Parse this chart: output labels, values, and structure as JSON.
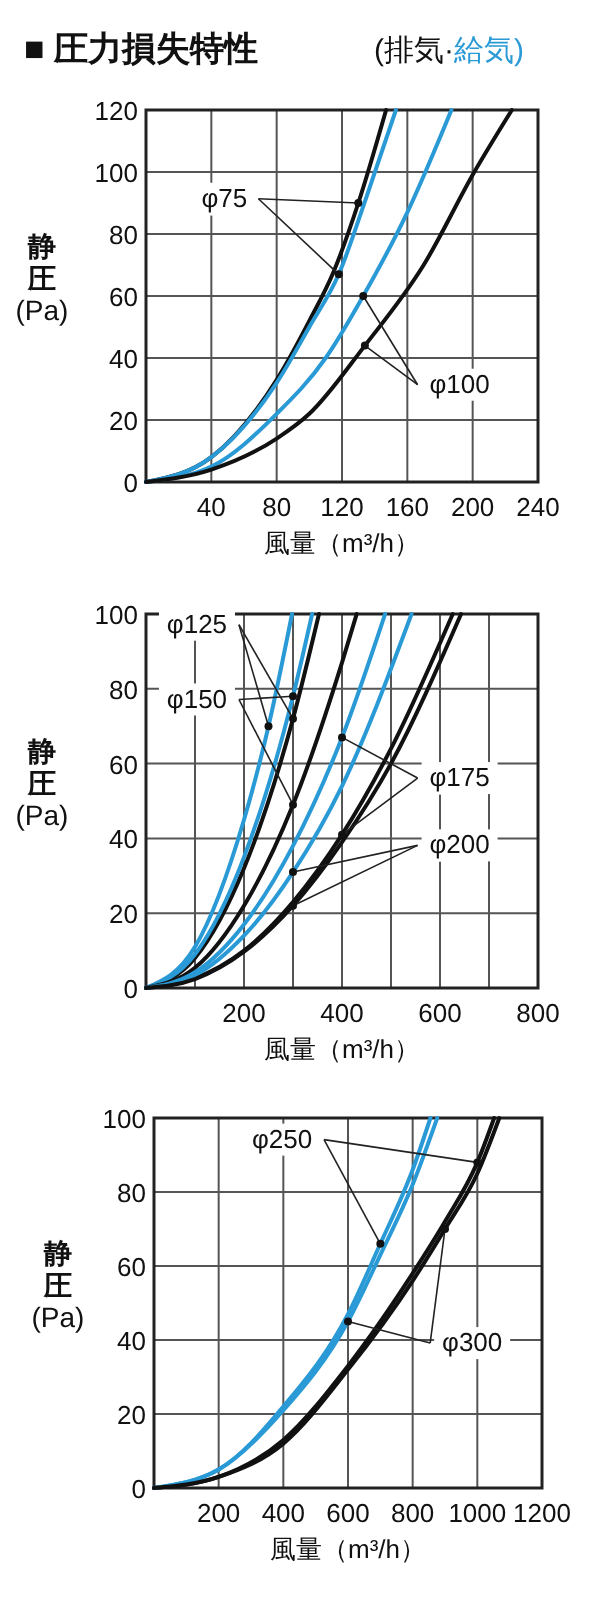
{
  "chart_data": [
    {
      "type": "line",
      "title": "■ 圧力損失特性",
      "subtitle": "(排気·給気)",
      "xlabel": "風量（m³/h）",
      "ylabel": "静圧 (Pa)",
      "xlim": [
        0,
        240
      ],
      "ylim": [
        0,
        120
      ],
      "xticks": [
        40,
        80,
        120,
        160,
        200,
        240
      ],
      "yticks": [
        0,
        20,
        40,
        60,
        80,
        100,
        120
      ],
      "grid": true,
      "legend": false,
      "marker": "none",
      "line_style": "solid",
      "series": [
        {
          "name": "φ75",
          "color": "#111111",
          "x": [
            0,
            40,
            80,
            100,
            115,
            130,
            147
          ],
          "values": [
            0,
            8,
            33,
            52,
            68,
            90,
            120
          ]
        },
        {
          "color": "#2a9ad6",
          "x": [
            0,
            40,
            80,
            100,
            118,
            135,
            153
          ],
          "values": [
            0,
            8,
            32,
            50,
            67,
            92,
            120
          ]
        },
        {
          "name": "φ100",
          "color": "#2a9ad6",
          "x": [
            0,
            40,
            80,
            110,
            133,
            160,
            187
          ],
          "values": [
            0,
            5,
            22,
            40,
            60,
            87,
            120
          ]
        },
        {
          "color": "#111111",
          "x": [
            0,
            40,
            80,
            100,
            134,
            170,
            201,
            224
          ],
          "values": [
            0,
            4,
            14,
            22,
            44,
            70,
            100,
            120
          ]
        }
      ]
    },
    {
      "type": "line",
      "xlabel": "風量（m³/h）",
      "ylabel": "静圧 (Pa)",
      "xlim": [
        0,
        800
      ],
      "ylim": [
        0,
        100
      ],
      "xticks": [
        {
          "value": 100,
          "label": null
        },
        200,
        {
          "value": 300,
          "label": null
        },
        400,
        {
          "value": 500,
          "label": null
        },
        600,
        {
          "value": 700,
          "label": null
        },
        800
      ],
      "yticks": [
        0,
        20,
        40,
        60,
        80,
        100
      ],
      "grid": true,
      "legend": false,
      "marker": "none",
      "line_style": "solid",
      "series": [
        {
          "name": "φ125",
          "color": "#2a9ad6",
          "x": [
            0,
            100,
            200,
            250,
            298
          ],
          "values": [
            0,
            11,
            45,
            70,
            100
          ]
        },
        {
          "color": "#111111",
          "x": [
            0,
            100,
            200,
            300,
            353
          ],
          "values": [
            0,
            8,
            32,
            72,
            100
          ]
        },
        {
          "name": "φ150",
          "color": "#2a9ad6",
          "x": [
            0,
            100,
            200,
            300,
            339
          ],
          "values": [
            0,
            9,
            35,
            78,
            100
          ]
        },
        {
          "color": "#111111",
          "x": [
            0,
            100,
            200,
            300,
            400,
            430
          ],
          "values": [
            0,
            5.4,
            22,
            49,
            87,
            100
          ]
        },
        {
          "name": "φ175",
          "color": "#2a9ad6",
          "x": [
            0,
            100,
            200,
            300,
            400,
            488
          ],
          "values": [
            0,
            4.2,
            17,
            38,
            67,
            100
          ]
        },
        {
          "color": "#111111",
          "x": [
            0,
            100,
            200,
            300,
            400,
            500,
            626
          ],
          "values": [
            0,
            2.6,
            10,
            23,
            41,
            64,
            100
          ]
        },
        {
          "name": "φ200",
          "color": "#2a9ad6",
          "x": [
            0,
            100,
            200,
            300,
            400,
            542
          ],
          "values": [
            0,
            3.4,
            14,
            31,
            54,
            100
          ]
        },
        {
          "color": "#111111",
          "x": [
            0,
            100,
            200,
            300,
            400,
            500,
            643
          ],
          "values": [
            0,
            2.4,
            9.7,
            22,
            39,
            60,
            100
          ]
        }
      ]
    },
    {
      "type": "line",
      "xlabel": "風量（m³/h）",
      "ylabel": "静圧 (Pa)",
      "xlim": [
        0,
        1200
      ],
      "ylim": [
        0,
        100
      ],
      "xticks": [
        200,
        400,
        600,
        800,
        1000,
        1200
      ],
      "yticks": [
        0,
        20,
        40,
        60,
        80,
        100
      ],
      "grid": true,
      "legend": false,
      "marker": "none",
      "line_style": "solid",
      "series": [
        {
          "name": "φ250",
          "color": "#2a9ad6",
          "x": [
            0,
            200,
            400,
            600,
            700,
            800,
            855
          ],
          "values": [
            0,
            5,
            22,
            47,
            66,
            86,
            100
          ]
        },
        {
          "color": "#111111",
          "x": [
            0,
            200,
            400,
            600,
            800,
            900,
            1000,
            1052
          ],
          "values": [
            0,
            3,
            13,
            33,
            58,
            72,
            88,
            100
          ]
        },
        {
          "name": "φ300",
          "color": "#2a9ad6",
          "x": [
            0,
            200,
            400,
            600,
            700,
            800,
            876
          ],
          "values": [
            0,
            5,
            21,
            45,
            63,
            82,
            100
          ]
        },
        {
          "color": "#111111",
          "x": [
            0,
            200,
            400,
            600,
            800,
            900,
            1000,
            1068
          ],
          "values": [
            0,
            3,
            12,
            32,
            56,
            70,
            85,
            100
          ]
        }
      ]
    }
  ]
}
